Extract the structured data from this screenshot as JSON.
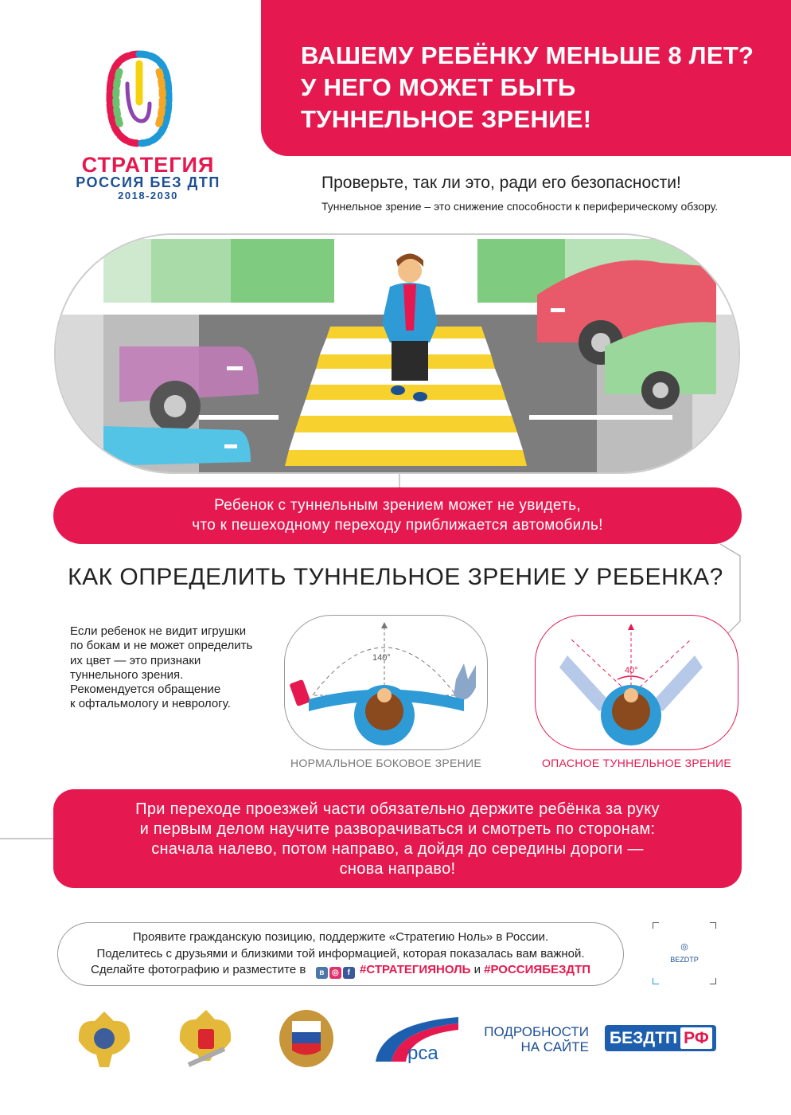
{
  "header": {
    "title_lines": [
      "ВАШЕМУ РЕБЁНКУ МЕНЬШЕ 8 ЛЕТ?",
      "У НЕГО МОЖЕТ БЫТЬ",
      "ТУННЕЛЬНОЕ ЗРЕНИЕ!"
    ]
  },
  "logo": {
    "line1": "СТРАТЕГИЯ",
    "line2": "РОССИЯ БЕЗ ДТП",
    "line3": "2018-2030"
  },
  "intro": {
    "headline": "Проверьте, так ли это, ради его безопасности!",
    "definition": "Туннельное зрение – это снижение способности к периферическому обзору."
  },
  "warning": {
    "lines": [
      "Ребенок с туннельным зрением может не увидеть,",
      "что к пешеходному переходу приближается автомобиль!"
    ]
  },
  "section_title": "КАК ОПРЕДЕЛИТЬ ТУННЕЛЬНОЕ ЗРЕНИЕ У РЕБЕНКА?",
  "advice": {
    "lines": [
      "Если ребенок не видит игрушки",
      "по бокам и не может определить",
      "их цвет — это признаки",
      "туннельного зрения.",
      "Рекомендуется обращение",
      "к офтальмологу и неврологу."
    ]
  },
  "diagrams": [
    {
      "angle": "140°",
      "caption": "НОРМАЛЬНОЕ БОКОВОЕ ЗРЕНИЕ"
    },
    {
      "angle": "40°",
      "caption": "ОПАСНОЕ ТУННЕЛЬНОЕ ЗРЕНИЕ"
    }
  ],
  "rule": {
    "lines": [
      "При переходе проезжей части обязательно держите ребёнка за руку",
      "и первым делом научите разворачиваться и смотреть по сторонам:",
      "сначала налево, потом направо, а дойдя до середины дороги —",
      "снова направо!"
    ]
  },
  "footer": {
    "line1": "Проявите гражданскую позицию, поддержите «Стратегию Ноль»  в России.",
    "line2": "Поделитесь с друзьями и близкими той информацией, которая показалась вам важной.",
    "line3_prefix": "Сделайте фотографию и разместите в",
    "social_icons": [
      "vk-icon",
      "instagram-icon",
      "facebook-icon"
    ],
    "hashtag1": "#СТРАТЕГИЯНОЛЬ",
    "conj": "и",
    "hashtag2": "#РОССИЯБЕЗДТП"
  },
  "qr": {
    "label": "BEZDTP"
  },
  "partners": {
    "rsa_text": "рса",
    "more_line1": "ПОДРОБНОСТИ",
    "more_line2": "НА САЙТЕ",
    "site_main": "БЕЗДТП",
    "site_suffix": "РФ"
  },
  "colors": {
    "accent": "#e5194f",
    "blue": "#1d4f93",
    "green": "#6cc06e"
  }
}
